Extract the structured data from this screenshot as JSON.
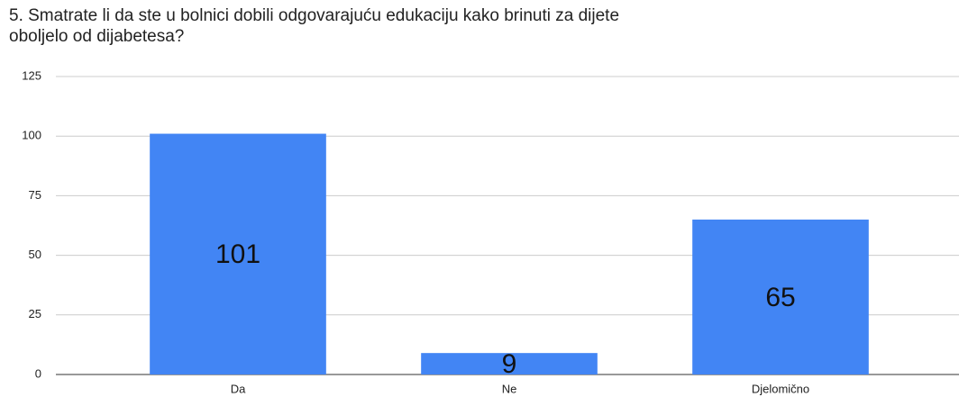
{
  "chart_data": {
    "type": "bar",
    "title": [
      "5. Smatrate li da ste u bolnici dobili odgovarajuću edukaciju kako brinuti za dijete",
      "oboljelo od dijabetesa?"
    ],
    "categories": [
      "Da",
      "Ne",
      "Djelomično"
    ],
    "values": [
      101,
      9,
      65
    ],
    "color": "#4285f4",
    "ylim": [
      0,
      125
    ],
    "yticks": [
      0,
      25,
      50,
      75,
      100,
      125
    ],
    "grid": true
  }
}
